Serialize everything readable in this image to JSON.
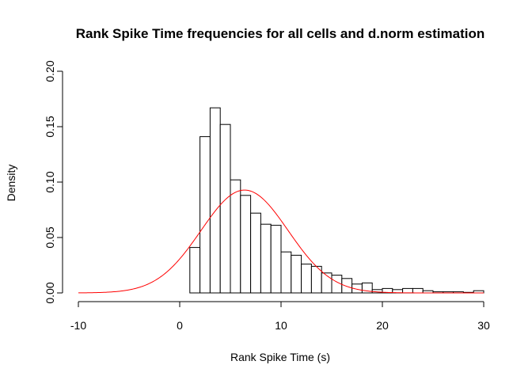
{
  "chart_data": {
    "type": "histogram",
    "title": "Rank Spike Time frequencies for all cells and d.norm estimation",
    "xlabel": "Rank Spike Time (s)",
    "ylabel": "Density",
    "xlim": [
      -10,
      30
    ],
    "ylim": [
      0,
      0.2
    ],
    "x_ticks": [
      -10,
      0,
      10,
      20,
      30
    ],
    "x_tick_labels": [
      "-10",
      "0",
      "10",
      "20",
      "30"
    ],
    "y_ticks": [
      0,
      0.05,
      0.1,
      0.15,
      0.2
    ],
    "y_tick_labels": [
      "0.00",
      "0.05",
      "0.10",
      "0.15",
      "0.20"
    ],
    "grid": false,
    "bins": [
      {
        "start": 1,
        "end": 2,
        "density": 0.041
      },
      {
        "start": 2,
        "end": 3,
        "density": 0.141
      },
      {
        "start": 3,
        "end": 4,
        "density": 0.167
      },
      {
        "start": 4,
        "end": 5,
        "density": 0.152
      },
      {
        "start": 5,
        "end": 6,
        "density": 0.102
      },
      {
        "start": 6,
        "end": 7,
        "density": 0.088
      },
      {
        "start": 7,
        "end": 8,
        "density": 0.072
      },
      {
        "start": 8,
        "end": 9,
        "density": 0.062
      },
      {
        "start": 9,
        "end": 10,
        "density": 0.061
      },
      {
        "start": 10,
        "end": 11,
        "density": 0.037
      },
      {
        "start": 11,
        "end": 12,
        "density": 0.034
      },
      {
        "start": 12,
        "end": 13,
        "density": 0.026
      },
      {
        "start": 13,
        "end": 14,
        "density": 0.024
      },
      {
        "start": 14,
        "end": 15,
        "density": 0.018
      },
      {
        "start": 15,
        "end": 16,
        "density": 0.016
      },
      {
        "start": 16,
        "end": 17,
        "density": 0.013
      },
      {
        "start": 17,
        "end": 18,
        "density": 0.008
      },
      {
        "start": 18,
        "end": 19,
        "density": 0.009
      },
      {
        "start": 19,
        "end": 20,
        "density": 0.003
      },
      {
        "start": 20,
        "end": 21,
        "density": 0.004
      },
      {
        "start": 21,
        "end": 22,
        "density": 0.003
      },
      {
        "start": 22,
        "end": 23,
        "density": 0.004
      },
      {
        "start": 23,
        "end": 24,
        "density": 0.004
      },
      {
        "start": 24,
        "end": 25,
        "density": 0.002
      },
      {
        "start": 25,
        "end": 26,
        "density": 0.001
      },
      {
        "start": 26,
        "end": 27,
        "density": 0.001
      },
      {
        "start": 27,
        "end": 28,
        "density": 0.001
      },
      {
        "start": 28,
        "end": 29,
        "density": 0.0005
      },
      {
        "start": 29,
        "end": 30,
        "density": 0.002
      }
    ],
    "bar_fill": "#ffffff",
    "bar_stroke": "#000000",
    "density_curve": {
      "distribution": "normal",
      "mean": 6.4,
      "sd": 4.3,
      "x_range": [
        -10,
        30
      ],
      "color": "#ff0000"
    }
  }
}
